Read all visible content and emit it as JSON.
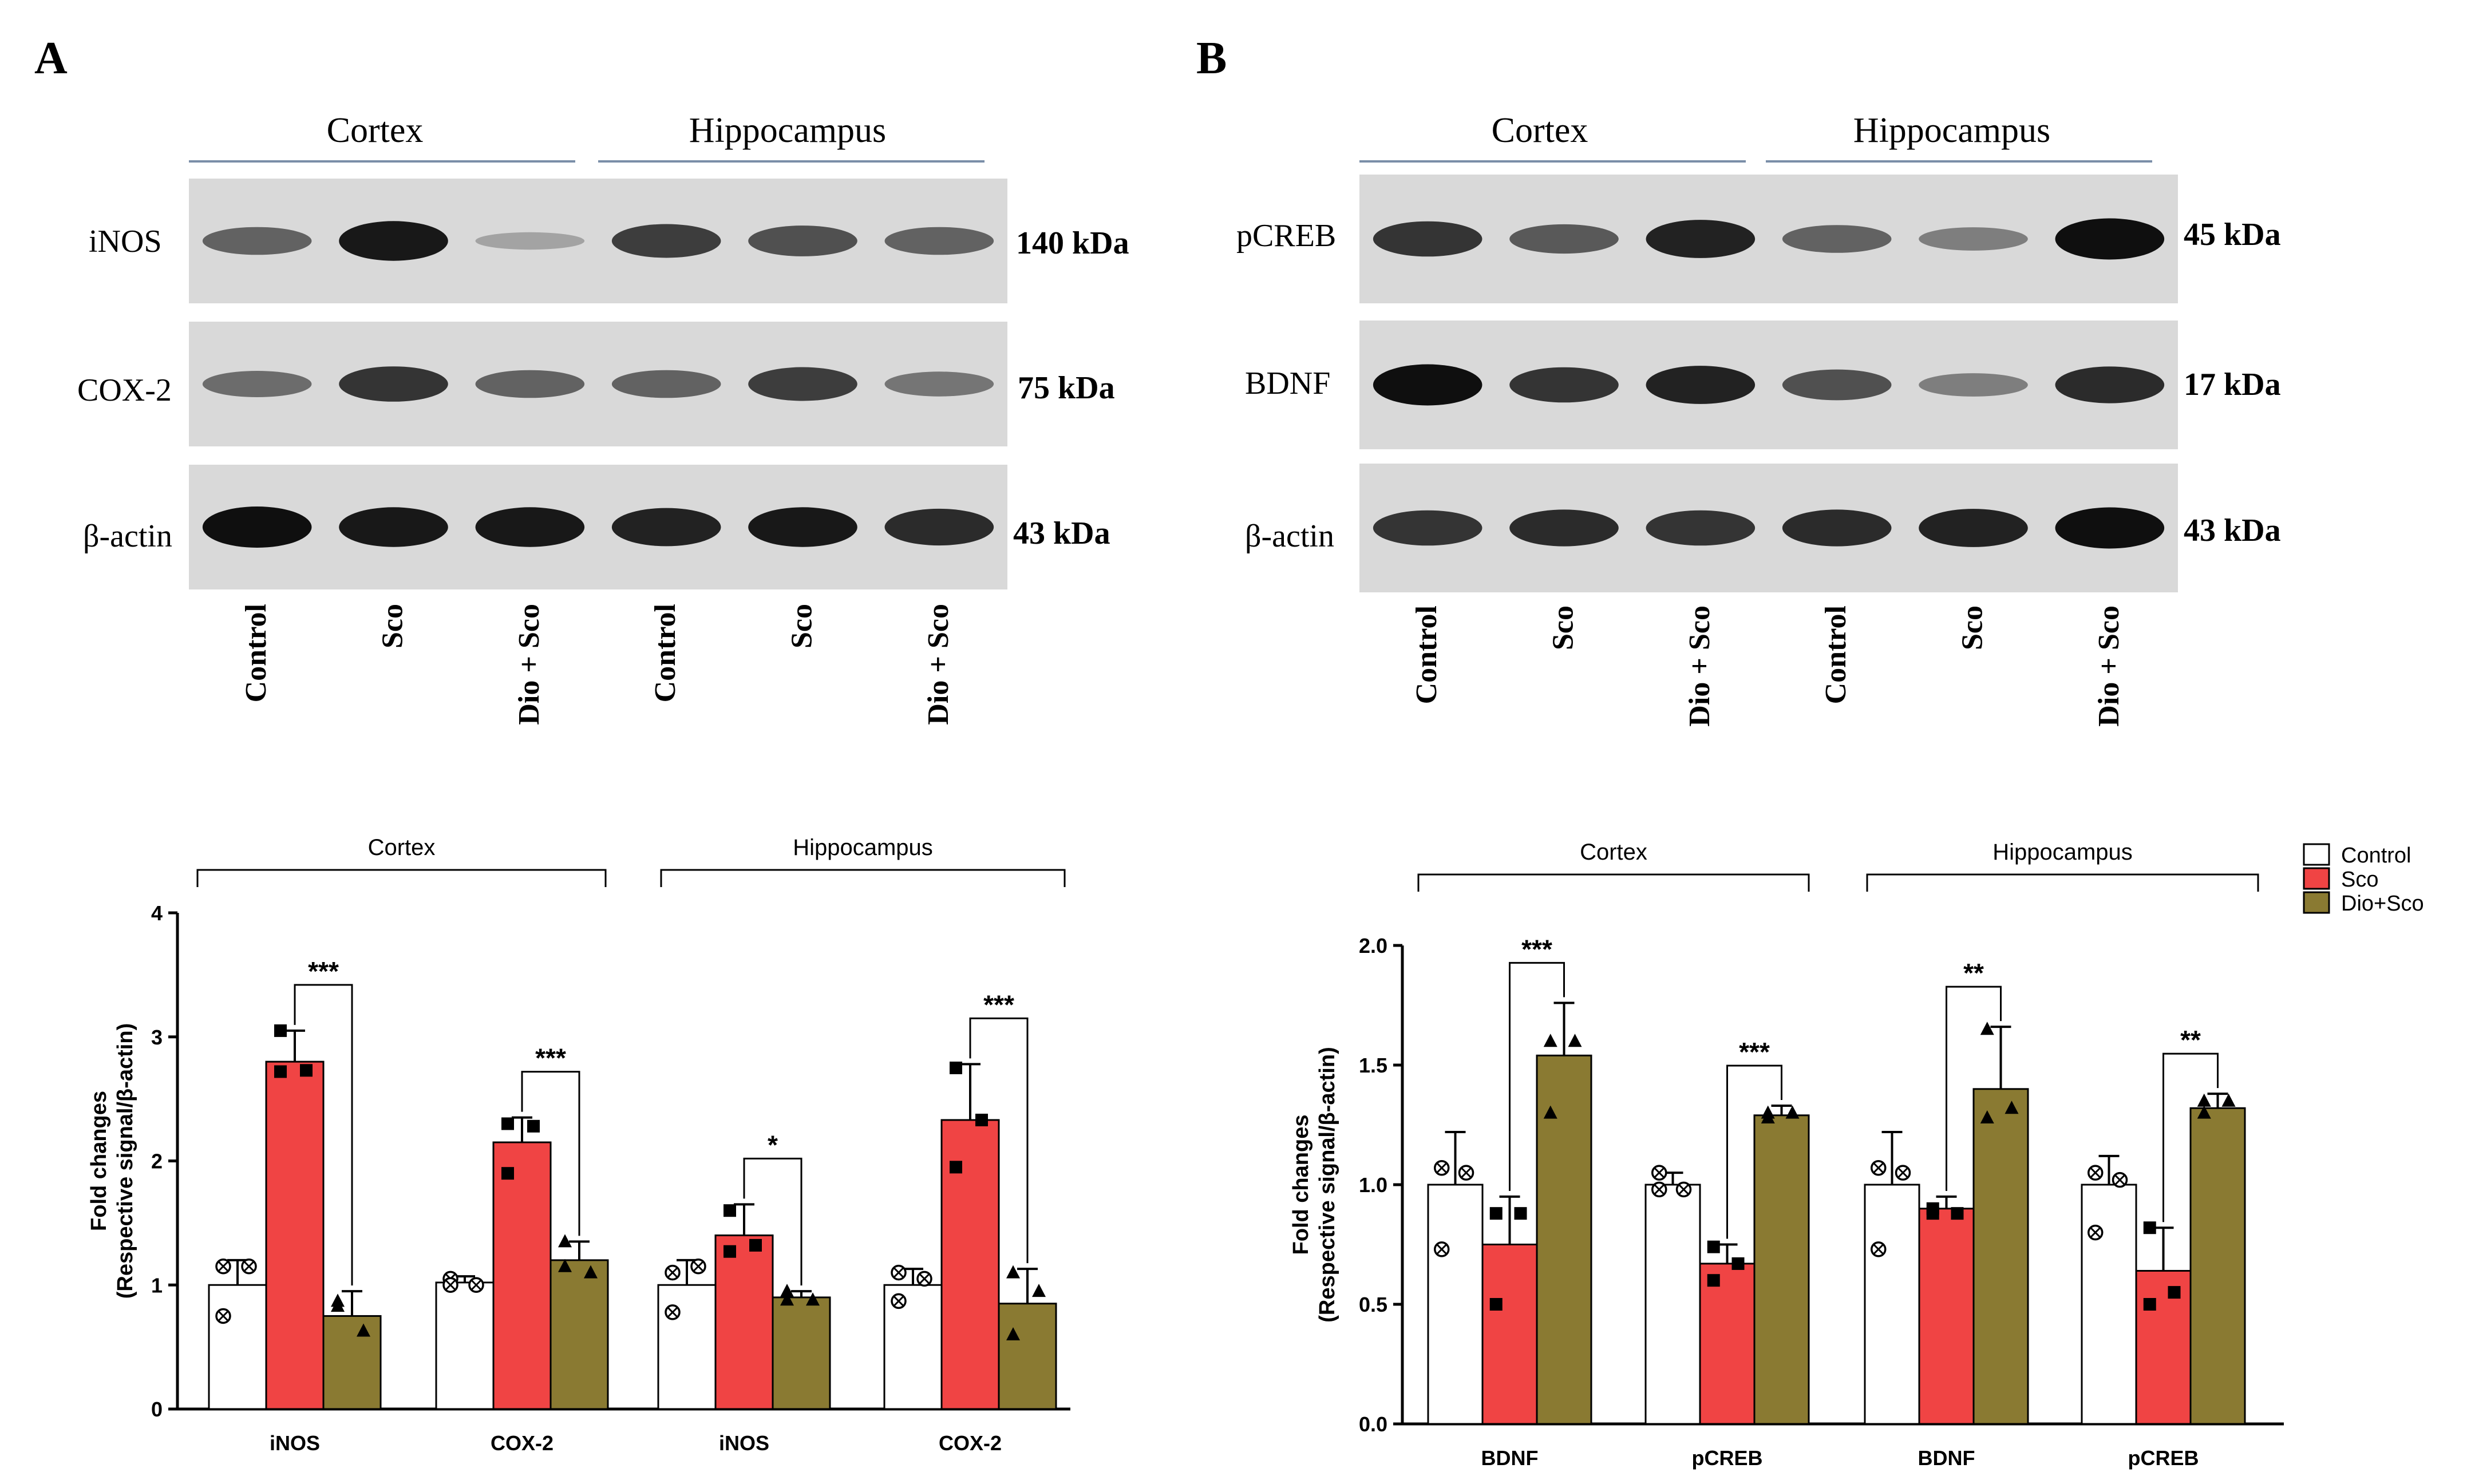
{
  "colors": {
    "control": "#ffffff",
    "sco": "#f04444",
    "dio_sco": "#8a7a32",
    "blot_bg": "#d9d9d9",
    "band": "#1a1a1a",
    "blot_line": "#7a8ea8"
  },
  "panels": {
    "A": {
      "letter": "A",
      "blot": {
        "regions": [
          "Cortex",
          "Hippocampus"
        ],
        "rows": [
          {
            "protein": "iNOS",
            "kda": "140 kDa",
            "intensity": [
              0.55,
              0.95,
              0.2,
              0.75,
              0.65,
              0.55
            ]
          },
          {
            "protein": "COX-2",
            "kda": "75 kDa",
            "intensity": [
              0.5,
              0.8,
              0.55,
              0.55,
              0.75,
              0.45
            ]
          },
          {
            "protein": "β-actin",
            "kda": "43 kDa",
            "intensity": [
              1.0,
              0.95,
              0.95,
              0.9,
              0.95,
              0.85
            ]
          }
        ],
        "lanes": [
          "Control",
          "Sco",
          "Dio + Sco",
          "Control",
          "Sco",
          "Dio + Sco"
        ]
      }
    },
    "B": {
      "letter": "B",
      "blot": {
        "regions": [
          "Cortex",
          "Hippocampus"
        ],
        "rows": [
          {
            "protein": "pCREB",
            "kda": "45 kDa",
            "intensity": [
              0.8,
              0.6,
              0.9,
              0.55,
              0.4,
              1.0
            ]
          },
          {
            "protein": "BDNF",
            "kda": "17 kDa",
            "intensity": [
              1.0,
              0.8,
              0.9,
              0.65,
              0.4,
              0.85
            ]
          },
          {
            "protein": "β-actin",
            "kda": "43 kDa",
            "intensity": [
              0.8,
              0.85,
              0.8,
              0.85,
              0.9,
              1.0
            ]
          }
        ],
        "lanes": [
          "Control",
          "Sco",
          "Dio + Sco",
          "Control",
          "Sco",
          "Dio + Sco"
        ]
      }
    }
  },
  "legend": {
    "entries": [
      "Control",
      "Sco",
      "Dio+Sco"
    ]
  },
  "chart_data": [
    {
      "type": "bar",
      "panel": "A",
      "regions": [
        "Cortex",
        "Hippocampus"
      ],
      "categories": [
        "iNOS",
        "COX-2",
        "iNOS",
        "COX-2"
      ],
      "ylabel": "Fold changes\n(Respective signal/β-actin)",
      "ylim": [
        0,
        4
      ],
      "yticks": [
        "0",
        "1",
        "2",
        "3",
        "4"
      ],
      "series": [
        {
          "name": "Control",
          "values": [
            1.0,
            1.02,
            1.0,
            1.0
          ],
          "errors": [
            0.2,
            0.05,
            0.2,
            0.13
          ],
          "points": [
            [
              1.15,
              1.15,
              0.75
            ],
            [
              1.05,
              1.0,
              1.0
            ],
            [
              1.1,
              1.15,
              0.78
            ],
            [
              1.1,
              1.05,
              0.87
            ]
          ]
        },
        {
          "name": "Sco",
          "values": [
            2.8,
            2.15,
            1.4,
            2.33
          ],
          "errors": [
            0.25,
            0.2,
            0.25,
            0.45
          ],
          "points": [
            [
              3.05,
              2.73,
              2.72
            ],
            [
              2.3,
              2.28,
              1.9
            ],
            [
              1.6,
              1.32,
              1.27
            ],
            [
              2.75,
              2.33,
              1.95
            ]
          ]
        },
        {
          "name": "Dio+Sco",
          "values": [
            0.75,
            1.2,
            0.9,
            0.85
          ],
          "errors": [
            0.2,
            0.15,
            0.05,
            0.28
          ],
          "points": [
            [
              0.87,
              0.63,
              0.83
            ],
            [
              1.35,
              1.1,
              1.15
            ],
            [
              0.95,
              0.88,
              0.88
            ],
            [
              1.1,
              0.95,
              0.6
            ]
          ]
        }
      ],
      "significance": [
        {
          "category": 0,
          "label": "***"
        },
        {
          "category": 1,
          "label": "***"
        },
        {
          "category": 2,
          "label": "*"
        },
        {
          "category": 3,
          "label": "***"
        }
      ]
    },
    {
      "type": "bar",
      "panel": "B",
      "regions": [
        "Cortex",
        "Hippocampus"
      ],
      "categories": [
        "BDNF",
        "pCREB",
        "BDNF",
        "pCREB"
      ],
      "ylabel": "Fold changes\n(Respective signal/β-actin)",
      "ylim": [
        0,
        2.0
      ],
      "yticks": [
        "0.0",
        "0.5",
        "1.0",
        "1.5",
        "2.0"
      ],
      "series": [
        {
          "name": "Control",
          "values": [
            1.0,
            1.0,
            1.0,
            1.0
          ],
          "errors": [
            0.22,
            0.05,
            0.22,
            0.12
          ],
          "points": [
            [
              1.07,
              1.05,
              0.73
            ],
            [
              1.05,
              0.98,
              0.98
            ],
            [
              1.07,
              1.05,
              0.73
            ],
            [
              1.05,
              1.02,
              0.8
            ]
          ]
        },
        {
          "name": "Sco",
          "values": [
            0.75,
            0.67,
            0.9,
            0.64
          ],
          "errors": [
            0.2,
            0.08,
            0.05,
            0.18
          ],
          "points": [
            [
              0.88,
              0.88,
              0.5
            ],
            [
              0.74,
              0.67,
              0.6
            ],
            [
              0.9,
              0.88,
              0.88
            ],
            [
              0.82,
              0.55,
              0.5
            ]
          ]
        },
        {
          "name": "Dio+Sco",
          "values": [
            1.54,
            1.29,
            1.4,
            1.32
          ],
          "errors": [
            0.22,
            0.04,
            0.26,
            0.06
          ],
          "points": [
            [
              1.6,
              1.6,
              1.3
            ],
            [
              1.3,
              1.3,
              1.28
            ],
            [
              1.65,
              1.32,
              1.28
            ],
            [
              1.35,
              1.35,
              1.3
            ]
          ]
        }
      ],
      "significance": [
        {
          "category": 0,
          "label": "***"
        },
        {
          "category": 1,
          "label": "***"
        },
        {
          "category": 2,
          "label": "**"
        },
        {
          "category": 3,
          "label": "**"
        }
      ]
    }
  ]
}
